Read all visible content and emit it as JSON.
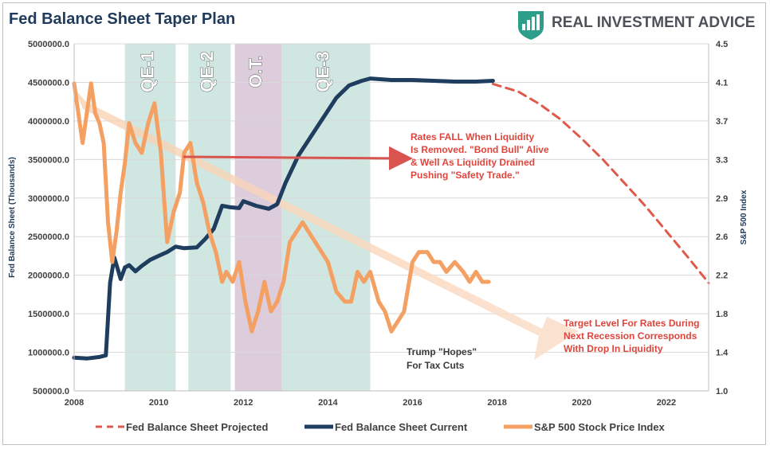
{
  "chart_data": {
    "type": "line",
    "title": "Fed Balance Sheet Taper Plan",
    "xlim": [
      2008,
      2023
    ],
    "x_ticks": [
      "2008",
      "2010",
      "2012",
      "2014",
      "2016",
      "2018",
      "2020",
      "2022"
    ],
    "y_left": {
      "label": "Fed Balance Sheet (Thousands)",
      "ylim": [
        500000,
        5000000
      ],
      "ticks": [
        "500000.0",
        "1000000.0",
        "1500000.0",
        "2000000.0",
        "2500000.0",
        "3000000.0",
        "3500000.0",
        "4000000.0",
        "4500000.0",
        "5000000.0"
      ]
    },
    "y_right": {
      "label": "S&P 500 Index",
      "ylim": [
        1.0,
        4.5
      ],
      "ticks": [
        "1.0",
        "1.4",
        "1.8",
        "2.2",
        "2.6",
        "2.9",
        "3.3",
        "3.7",
        "4.1",
        "4.5"
      ]
    },
    "grid": true,
    "bands": [
      {
        "label": "QE-1",
        "start": 2009.2,
        "end": 2010.4,
        "color": "#cfe6e1"
      },
      {
        "label": "QE-2",
        "start": 2010.7,
        "end": 2011.7,
        "color": "#cfe6e1"
      },
      {
        "label": "O.T.",
        "start": 2011.8,
        "end": 2012.9,
        "color": "#dcccdc"
      },
      {
        "label": "QE-3",
        "start": 2012.9,
        "end": 2015.0,
        "color": "#cfe6e1"
      }
    ],
    "series": [
      {
        "name": "Fed Balance Sheet Projected",
        "axis": "left",
        "style": "dashed",
        "color": "#e05a4c",
        "x": [
          2017.9,
          2018.5,
          2019.0,
          2019.5,
          2020.0,
          2020.5,
          2021.0,
          2021.5,
          2022.0,
          2022.5,
          2023.0
        ],
        "y": [
          4480000,
          4380000,
          4220000,
          4020000,
          3770000,
          3500000,
          3200000,
          2900000,
          2570000,
          2240000,
          1900000
        ]
      },
      {
        "name": "Fed Balance Sheet Current",
        "axis": "left",
        "style": "solid",
        "color": "#1f3d5e",
        "x": [
          2008.0,
          2008.3,
          2008.6,
          2008.75,
          2008.85,
          2008.95,
          2009.1,
          2009.2,
          2009.3,
          2009.45,
          2009.6,
          2009.8,
          2010.0,
          2010.2,
          2010.4,
          2010.6,
          2010.9,
          2011.1,
          2011.3,
          2011.5,
          2011.7,
          2011.9,
          2012.0,
          2012.3,
          2012.6,
          2012.8,
          2013.0,
          2013.3,
          2013.6,
          2013.9,
          2014.2,
          2014.5,
          2014.8,
          2015.0,
          2015.5,
          2016.0,
          2016.5,
          2017.0,
          2017.5,
          2017.9
        ],
        "y": [
          930000,
          920000,
          940000,
          960000,
          1900000,
          2230000,
          1950000,
          2100000,
          2130000,
          2050000,
          2120000,
          2200000,
          2250000,
          2300000,
          2370000,
          2350000,
          2360000,
          2470000,
          2600000,
          2900000,
          2880000,
          2870000,
          2960000,
          2900000,
          2860000,
          2920000,
          3200000,
          3550000,
          3800000,
          4050000,
          4300000,
          4460000,
          4520000,
          4550000,
          4530000,
          4530000,
          4520000,
          4510000,
          4510000,
          4520000
        ]
      },
      {
        "name": "S&P 500 Stock Price Index",
        "axis": "right",
        "style": "solid",
        "color": "#f4a062",
        "x": [
          2008.0,
          2008.1,
          2008.2,
          2008.3,
          2008.4,
          2008.5,
          2008.6,
          2008.7,
          2008.8,
          2008.9,
          2009.0,
          2009.1,
          2009.2,
          2009.3,
          2009.45,
          2009.6,
          2009.75,
          2009.9,
          2010.05,
          2010.2,
          2010.35,
          2010.5,
          2010.6,
          2010.75,
          2010.9,
          2011.05,
          2011.2,
          2011.35,
          2011.5,
          2011.6,
          2011.75,
          2011.9,
          2012.05,
          2012.2,
          2012.35,
          2012.5,
          2012.65,
          2012.8,
          2012.95,
          2013.1,
          2013.25,
          2013.4,
          2013.55,
          2013.7,
          2013.85,
          2014.0,
          2014.2,
          2014.4,
          2014.55,
          2014.7,
          2014.85,
          2015.0,
          2015.2,
          2015.35,
          2015.5,
          2015.65,
          2015.8,
          2016.0,
          2016.15,
          2016.35,
          2016.5,
          2016.65,
          2016.8,
          2017.0,
          2017.2,
          2017.35,
          2017.5,
          2017.65,
          2017.8
        ],
        "y": [
          4.1,
          3.8,
          3.5,
          3.8,
          4.1,
          3.8,
          3.7,
          3.5,
          2.7,
          2.3,
          2.6,
          3.0,
          3.3,
          3.7,
          3.5,
          3.4,
          3.7,
          3.9,
          3.4,
          2.5,
          2.8,
          3.0,
          3.4,
          3.5,
          3.1,
          2.9,
          2.6,
          2.4,
          2.1,
          2.2,
          2.1,
          2.3,
          1.9,
          1.6,
          1.8,
          2.1,
          1.8,
          1.9,
          2.1,
          2.5,
          2.6,
          2.7,
          2.6,
          2.5,
          2.4,
          2.3,
          2.0,
          1.9,
          1.9,
          2.2,
          2.1,
          2.2,
          1.9,
          1.8,
          1.6,
          1.7,
          1.8,
          2.3,
          2.4,
          2.4,
          2.3,
          2.3,
          2.2,
          2.3,
          2.2,
          2.1,
          2.2,
          2.1,
          2.1
        ]
      }
    ],
    "annotations": [
      {
        "lines": [
          "Rates FALL When Liquidity",
          "Is Removed. \"Bond Bull\" Alive",
          "& Well As Liquidity Drained",
          "Pushing \"Safety Trade.\""
        ],
        "color": "#e0453c"
      },
      {
        "lines": [
          "Target Level For Rates During",
          "Next Recession Corresponds",
          "With Drop In Liquidity"
        ],
        "color": "#e0453c"
      },
      {
        "lines": [
          "Trump \"Hopes\"",
          "For Tax Cuts"
        ],
        "color": "#3a3a3a"
      }
    ],
    "legend_placement": "bottom"
  },
  "brand": {
    "name": "REAL INVESTMENT ADVICE",
    "icon": "bar-chart-shield-icon",
    "color": "#2b9f8a"
  }
}
